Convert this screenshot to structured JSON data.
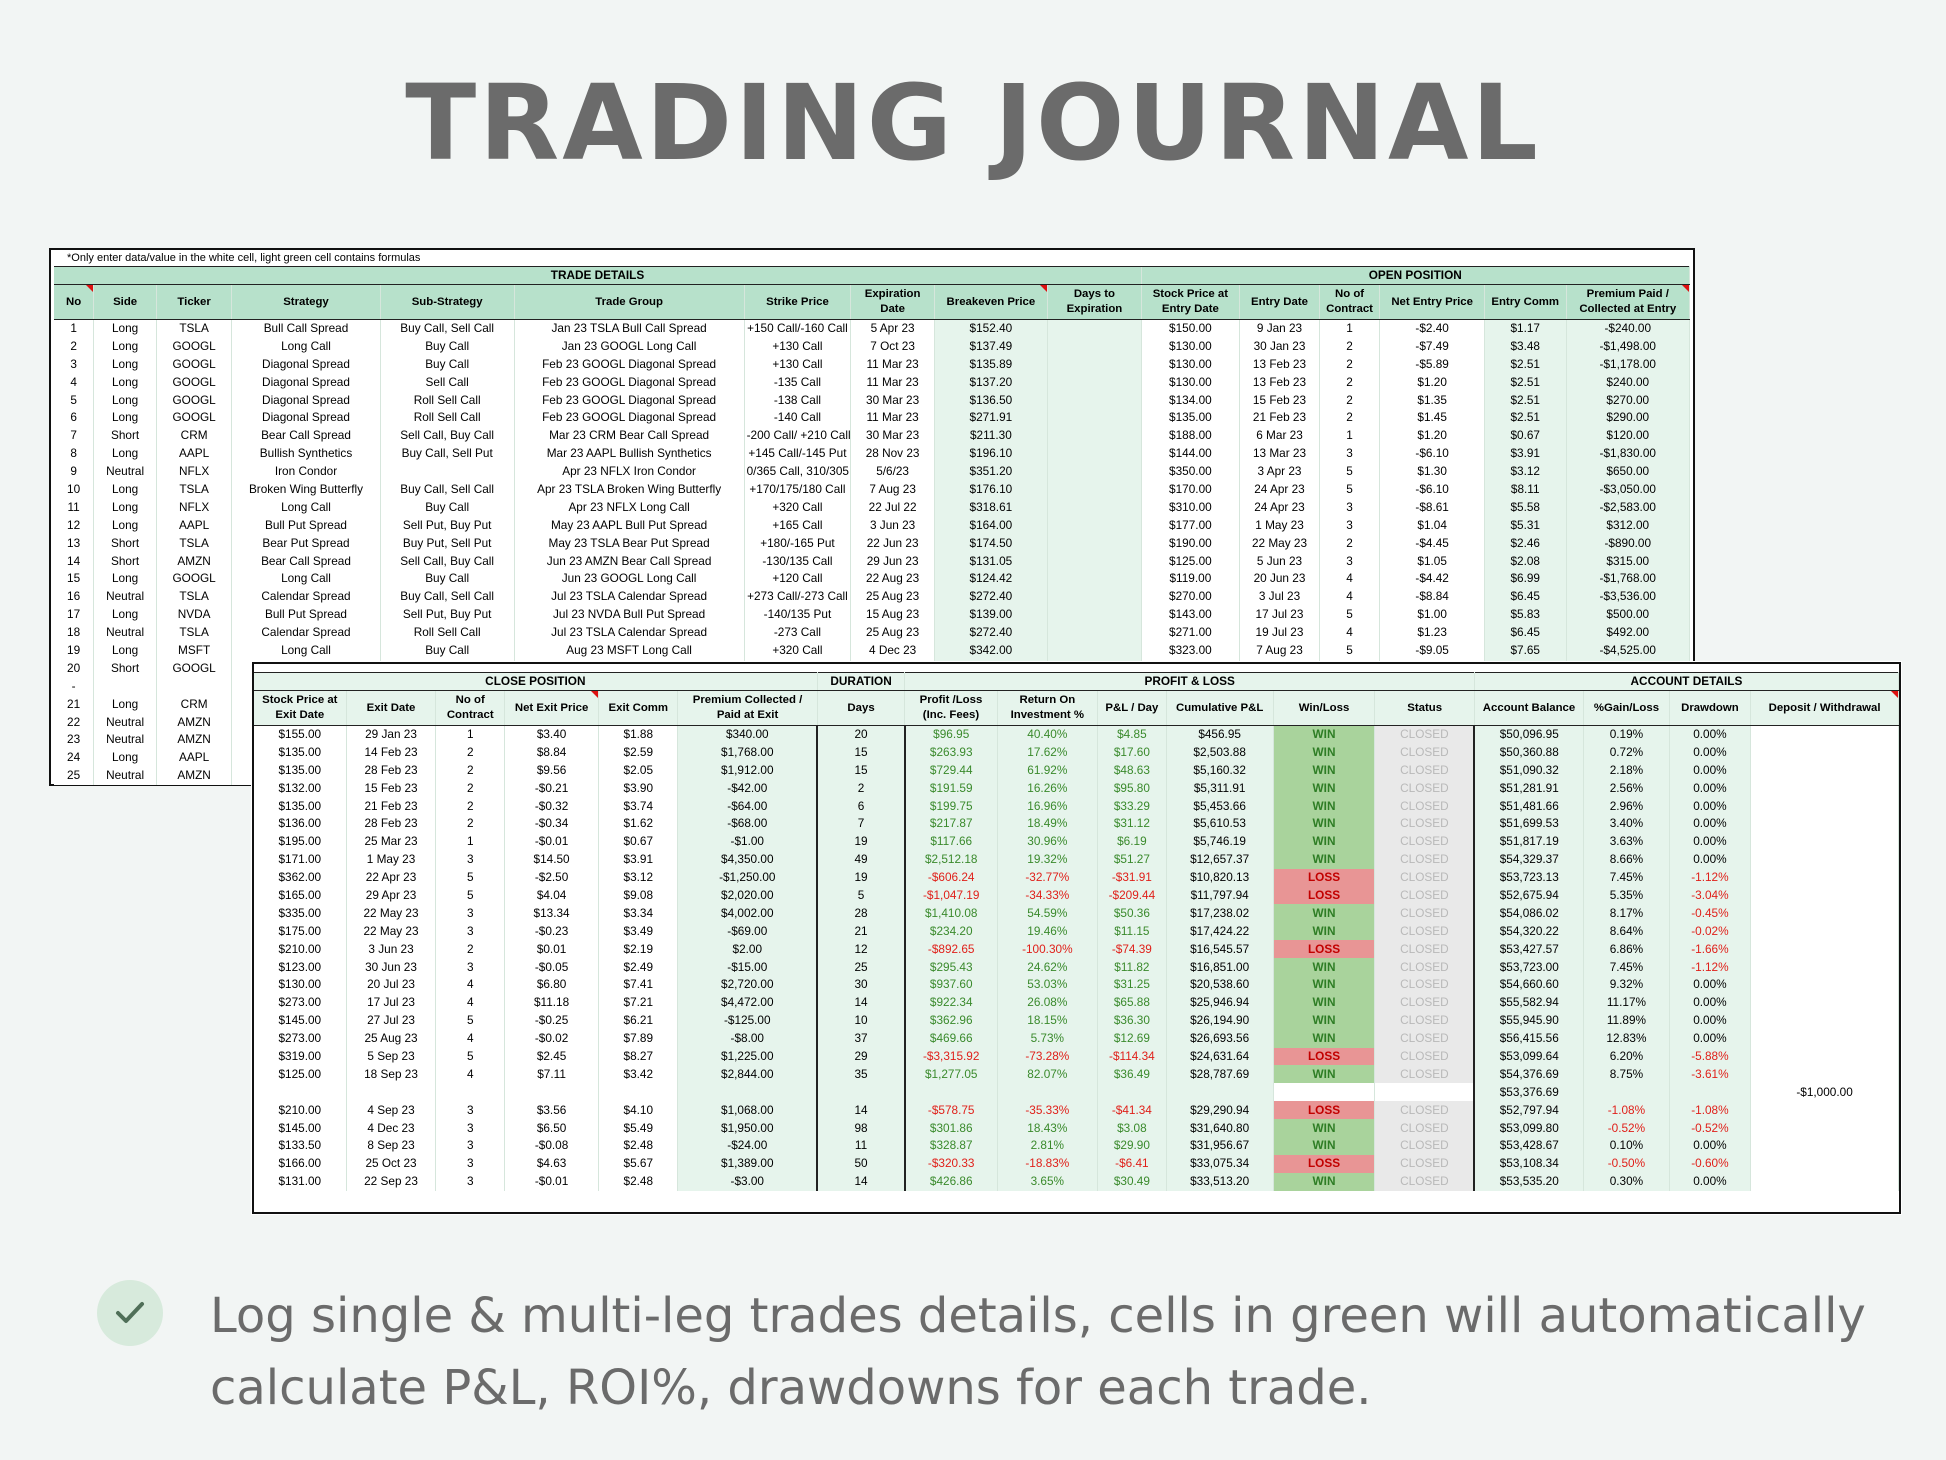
{
  "title": "TRADING JOURNAL",
  "note": "*Only enter data/value in the white cell, light green cell contains formulas",
  "caption": "Log single & multi-leg trades details, cells in green will automatically calculate P&L, ROI%, drawdowns for each trade.",
  "sheet1": {
    "groups": [
      "TRADE DETAILS",
      "OPEN POSITION"
    ],
    "headers": [
      "No",
      "Side",
      "Ticker",
      "Strategy",
      "Sub-Strategy",
      "Trade Group",
      "Strike Price",
      "Expiration Date",
      "Breakeven Price",
      "Days to Expiration",
      "Stock Price at Entry Date",
      "Entry Date",
      "No of Contract",
      "Net Entry Price",
      "Entry Comm",
      "Premium Paid / Collected at Entry"
    ],
    "rows": [
      [
        "1",
        "Long",
        "TSLA",
        "Bull Call Spread",
        "Buy Call, Sell Call",
        "Jan 23 TSLA Bull Call Spread",
        "+150 Call/-160 Call",
        "5 Apr 23",
        "$152.40",
        "",
        "$150.00",
        "9 Jan 23",
        "1",
        "-$2.40",
        "$1.17",
        "-$240.00"
      ],
      [
        "2",
        "Long",
        "GOOGL",
        "Long Call",
        "Buy Call",
        "Jan 23 GOOGL Long Call",
        "+130 Call",
        "7 Oct 23",
        "$137.49",
        "",
        "$130.00",
        "30 Jan 23",
        "2",
        "-$7.49",
        "$3.48",
        "-$1,498.00"
      ],
      [
        "3",
        "Long",
        "GOOGL",
        "Diagonal Spread",
        "Buy Call",
        "Feb 23 GOOGL Diagonal Spread",
        "+130 Call",
        "11 Mar 23",
        "$135.89",
        "",
        "$130.00",
        "13 Feb 23",
        "2",
        "-$5.89",
        "$2.51",
        "-$1,178.00"
      ],
      [
        "4",
        "Long",
        "GOOGL",
        "Diagonal Spread",
        "Sell Call",
        "Feb 23 GOOGL Diagonal Spread",
        "-135 Call",
        "11 Mar 23",
        "$137.20",
        "",
        "$130.00",
        "13 Feb 23",
        "2",
        "$1.20",
        "$2.51",
        "$240.00"
      ],
      [
        "5",
        "Long",
        "GOOGL",
        "Diagonal Spread",
        "Roll Sell Call",
        "Feb 23 GOOGL Diagonal Spread",
        "-138 Call",
        "30 Mar 23",
        "$136.50",
        "",
        "$134.00",
        "15 Feb 23",
        "2",
        "$1.35",
        "$2.51",
        "$270.00"
      ],
      [
        "6",
        "Long",
        "GOOGL",
        "Diagonal Spread",
        "Roll Sell Call",
        "Feb 23 GOOGL Diagonal Spread",
        "-140 Call",
        "11 Mar 23",
        "$271.91",
        "",
        "$135.00",
        "21 Feb 23",
        "2",
        "$1.45",
        "$2.51",
        "$290.00"
      ],
      [
        "7",
        "Short",
        "CRM",
        "Bear Call Spread",
        "Sell Call, Buy Call",
        "Mar 23 CRM Bear Call Spread",
        "-200 Call/ +210 Call",
        "30 Mar 23",
        "$211.30",
        "",
        "$188.00",
        "6 Mar 23",
        "1",
        "$1.20",
        "$0.67",
        "$120.00"
      ],
      [
        "8",
        "Long",
        "AAPL",
        "Bullish Synthetics",
        "Buy Call, Sell Put",
        "Mar 23 AAPL Bullish Synthetics",
        "+145 Call/-145 Put",
        "28 Nov 23",
        "$196.10",
        "",
        "$144.00",
        "13 Mar 23",
        "3",
        "-$6.10",
        "$3.91",
        "-$1,830.00"
      ],
      [
        "9",
        "Neutral",
        "NFLX",
        "Iron Condor",
        "",
        "Apr 23 NFLX Iron Condor",
        "0/365 Call, 310/305 P",
        "5/6/23",
        "$351.20",
        "",
        "$350.00",
        "3 Apr 23",
        "5",
        "$1.30",
        "$3.12",
        "$650.00"
      ],
      [
        "10",
        "Long",
        "TSLA",
        "Broken Wing Butterfly",
        "Buy Call, Sell Call",
        "Apr 23 TSLA Broken Wing Butterfly",
        "+170/175/180 Call",
        "7 Aug 23",
        "$176.10",
        "",
        "$170.00",
        "24 Apr 23",
        "5",
        "-$6.10",
        "$8.11",
        "-$3,050.00"
      ],
      [
        "11",
        "Long",
        "NFLX",
        "Long Call",
        "Buy Call",
        "Apr 23 NFLX Long Call",
        "+320 Call",
        "22 Jul 22",
        "$318.61",
        "",
        "$310.00",
        "24 Apr 23",
        "3",
        "-$8.61",
        "$5.58",
        "-$2,583.00"
      ],
      [
        "12",
        "Long",
        "AAPL",
        "Bull Put Spread",
        "Sell Put, Buy Put",
        "May 23 AAPL Bull Put Spread",
        "+165 Call",
        "3 Jun 23",
        "$164.00",
        "",
        "$177.00",
        "1 May 23",
        "3",
        "$1.04",
        "$5.31",
        "$312.00"
      ],
      [
        "13",
        "Short",
        "TSLA",
        "Bear Put Spread",
        "Buy Put, Sell Put",
        "May 23 TSLA Bear Put Spread",
        "+180/-165 Put",
        "22 Jun 23",
        "$174.50",
        "",
        "$190.00",
        "22 May 23",
        "2",
        "-$4.45",
        "$2.46",
        "-$890.00"
      ],
      [
        "14",
        "Short",
        "AMZN",
        "Bear Call Spread",
        "Sell Call, Buy Call",
        "Jun 23 AMZN Bear Call Spread",
        "-130/135 Call",
        "29 Jun 23",
        "$131.05",
        "",
        "$125.00",
        "5 Jun 23",
        "3",
        "$1.05",
        "$2.08",
        "$315.00"
      ],
      [
        "15",
        "Long",
        "GOOGL",
        "Long Call",
        "Buy Call",
        "Jun 23 GOOGL Long Call",
        "+120 Call",
        "22 Aug 23",
        "$124.42",
        "",
        "$119.00",
        "20 Jun 23",
        "4",
        "-$4.42",
        "$6.99",
        "-$1,768.00"
      ],
      [
        "16",
        "Neutral",
        "TSLA",
        "Calendar Spread",
        "Buy Call, Sell Call",
        "Jul 23 TSLA Calendar Spread",
        "+273 Call/-273 Call",
        "25 Aug 23",
        "$272.40",
        "",
        "$270.00",
        "3 Jul 23",
        "4",
        "-$8.84",
        "$6.45",
        "-$3,536.00"
      ],
      [
        "17",
        "Long",
        "NVDA",
        "Bull Put Spread",
        "Sell Put, Buy Put",
        "Jul 23 NVDA Bull Put Spread",
        "-140/135 Put",
        "15 Aug 23",
        "$139.00",
        "",
        "$143.00",
        "17 Jul 23",
        "5",
        "$1.00",
        "$5.83",
        "$500.00"
      ],
      [
        "18",
        "Neutral",
        "TSLA",
        "Calendar Spread",
        "Roll Sell Call",
        "Jul 23 TSLA Calendar Spread",
        "-273 Call",
        "25 Aug 23",
        "$272.40",
        "",
        "$271.00",
        "19 Jul 23",
        "4",
        "$1.23",
        "$6.45",
        "$492.00"
      ],
      [
        "19",
        "Long",
        "MSFT",
        "Long Call",
        "Buy Call",
        "Aug 23 MSFT Long Call",
        "+320 Call",
        "4 Dec 23",
        "$342.00",
        "",
        "$323.00",
        "7 Aug 23",
        "5",
        "-$9.05",
        "$7.65",
        "-$4,525.00"
      ],
      [
        "20",
        "Short",
        "GOOGL",
        "",
        "",
        "",
        "",
        "",
        "",
        "",
        "",
        "",
        "",
        "",
        "",
        ""
      ],
      [
        "-",
        "",
        "",
        "",
        "",
        "",
        "",
        "",
        "",
        "",
        "",
        "",
        "",
        "",
        "",
        ""
      ],
      [
        "21",
        "Long",
        "CRM",
        "",
        "",
        "",
        "",
        "",
        "",
        "",
        "",
        "",
        "",
        "",
        "",
        ""
      ],
      [
        "22",
        "Neutral",
        "AMZN",
        "",
        "",
        "",
        "",
        "",
        "",
        "",
        "",
        "",
        "",
        "",
        "",
        ""
      ],
      [
        "23",
        "Neutral",
        "AMZN",
        "",
        "",
        "",
        "",
        "",
        "",
        "",
        "",
        "",
        "",
        "",
        "",
        ""
      ],
      [
        "24",
        "Long",
        "AAPL",
        "",
        "",
        "",
        "",
        "",
        "",
        "",
        "",
        "",
        "",
        "",
        "",
        ""
      ],
      [
        "25",
        "Neutral",
        "AMZN",
        "",
        "",
        "",
        "",
        "",
        "",
        "",
        "",
        "",
        "",
        "",
        "",
        ""
      ]
    ]
  },
  "sheet2": {
    "groups": [
      "CLOSE POSITION",
      "DURATION",
      "PROFIT & LOSS",
      "ACCOUNT DETAILS"
    ],
    "headers": [
      "Stock Price at Exit Date",
      "Exit Date",
      "No of Contract",
      "Net Exit Price",
      "Exit Comm",
      "Premium Collected / Paid at Exit",
      "Days",
      "Profit /Loss (Inc. Fees)",
      "Return On Investment %",
      "P&L / Day",
      "Cumulative P&L",
      "Win/Loss",
      "Status",
      "Account Balance",
      "%Gain/Loss",
      "Drawdown",
      "Deposit / Withdrawal"
    ],
    "rows": [
      [
        "$155.00",
        "29 Jan 23",
        "1",
        "$3.40",
        "$1.88",
        "$340.00",
        "20",
        "$96.95",
        "40.40%",
        "$4.85",
        "$456.95",
        "WIN",
        "CLOSED",
        "$50,096.95",
        "0.19%",
        "0.00%",
        ""
      ],
      [
        "$135.00",
        "14 Feb 23",
        "2",
        "$8.84",
        "$2.59",
        "$1,768.00",
        "15",
        "$263.93",
        "17.62%",
        "$17.60",
        "$2,503.88",
        "WIN",
        "CLOSED",
        "$50,360.88",
        "0.72%",
        "0.00%",
        ""
      ],
      [
        "$135.00",
        "28 Feb 23",
        "2",
        "$9.56",
        "$2.05",
        "$1,912.00",
        "15",
        "$729.44",
        "61.92%",
        "$48.63",
        "$5,160.32",
        "WIN",
        "CLOSED",
        "$51,090.32",
        "2.18%",
        "0.00%",
        ""
      ],
      [
        "$132.00",
        "15 Feb 23",
        "2",
        "-$0.21",
        "$3.90",
        "-$42.00",
        "2",
        "$191.59",
        "16.26%",
        "$95.80",
        "$5,311.91",
        "WIN",
        "CLOSED",
        "$51,281.91",
        "2.56%",
        "0.00%",
        ""
      ],
      [
        "$135.00",
        "21 Feb 23",
        "2",
        "-$0.32",
        "$3.74",
        "-$64.00",
        "6",
        "$199.75",
        "16.96%",
        "$33.29",
        "$5,453.66",
        "WIN",
        "CLOSED",
        "$51,481.66",
        "2.96%",
        "0.00%",
        ""
      ],
      [
        "$136.00",
        "28 Feb 23",
        "2",
        "-$0.34",
        "$1.62",
        "-$68.00",
        "7",
        "$217.87",
        "18.49%",
        "$31.12",
        "$5,610.53",
        "WIN",
        "CLOSED",
        "$51,699.53",
        "3.40%",
        "0.00%",
        ""
      ],
      [
        "$195.00",
        "25 Mar 23",
        "1",
        "-$0.01",
        "$0.67",
        "-$1.00",
        "19",
        "$117.66",
        "30.96%",
        "$6.19",
        "$5,746.19",
        "WIN",
        "CLOSED",
        "$51,817.19",
        "3.63%",
        "0.00%",
        ""
      ],
      [
        "$171.00",
        "1 May 23",
        "3",
        "$14.50",
        "$3.91",
        "$4,350.00",
        "49",
        "$2,512.18",
        "19.32%",
        "$51.27",
        "$12,657.37",
        "WIN",
        "CLOSED",
        "$54,329.37",
        "8.66%",
        "0.00%",
        ""
      ],
      [
        "$362.00",
        "22 Apr 23",
        "5",
        "-$2.50",
        "$3.12",
        "-$1,250.00",
        "19",
        "-$606.24",
        "-32.77%",
        "-$31.91",
        "$10,820.13",
        "LOSS",
        "CLOSED",
        "$53,723.13",
        "7.45%",
        "-1.12%",
        ""
      ],
      [
        "$165.00",
        "29 Apr 23",
        "5",
        "$4.04",
        "$9.08",
        "$2,020.00",
        "5",
        "-$1,047.19",
        "-34.33%",
        "-$209.44",
        "$11,797.94",
        "LOSS",
        "CLOSED",
        "$52,675.94",
        "5.35%",
        "-3.04%",
        ""
      ],
      [
        "$335.00",
        "22 May 23",
        "3",
        "$13.34",
        "$3.34",
        "$4,002.00",
        "28",
        "$1,410.08",
        "54.59%",
        "$50.36",
        "$17,238.02",
        "WIN",
        "CLOSED",
        "$54,086.02",
        "8.17%",
        "-0.45%",
        ""
      ],
      [
        "$175.00",
        "22 May 23",
        "3",
        "-$0.23",
        "$3.49",
        "-$69.00",
        "21",
        "$234.20",
        "19.46%",
        "$11.15",
        "$17,424.22",
        "WIN",
        "CLOSED",
        "$54,320.22",
        "8.64%",
        "-0.02%",
        ""
      ],
      [
        "$210.00",
        "3 Jun 23",
        "2",
        "$0.01",
        "$2.19",
        "$2.00",
        "12",
        "-$892.65",
        "-100.30%",
        "-$74.39",
        "$16,545.57",
        "LOSS",
        "CLOSED",
        "$53,427.57",
        "6.86%",
        "-1.66%",
        ""
      ],
      [
        "$123.00",
        "30 Jun 23",
        "3",
        "-$0.05",
        "$2.49",
        "-$15.00",
        "25",
        "$295.43",
        "24.62%",
        "$11.82",
        "$16,851.00",
        "WIN",
        "CLOSED",
        "$53,723.00",
        "7.45%",
        "-1.12%",
        ""
      ],
      [
        "$130.00",
        "20 Jul 23",
        "4",
        "$6.80",
        "$7.41",
        "$2,720.00",
        "30",
        "$937.60",
        "53.03%",
        "$31.25",
        "$20,538.60",
        "WIN",
        "CLOSED",
        "$54,660.60",
        "9.32%",
        "0.00%",
        ""
      ],
      [
        "$273.00",
        "17 Jul 23",
        "4",
        "$11.18",
        "$7.21",
        "$4,472.00",
        "14",
        "$922.34",
        "26.08%",
        "$65.88",
        "$25,946.94",
        "WIN",
        "CLOSED",
        "$55,582.94",
        "11.17%",
        "0.00%",
        ""
      ],
      [
        "$145.00",
        "27 Jul 23",
        "5",
        "-$0.25",
        "$6.21",
        "-$125.00",
        "10",
        "$362.96",
        "18.15%",
        "$36.30",
        "$26,194.90",
        "WIN",
        "CLOSED",
        "$55,945.90",
        "11.89%",
        "0.00%",
        ""
      ],
      [
        "$273.00",
        "25 Aug 23",
        "4",
        "-$0.02",
        "$7.89",
        "-$8.00",
        "37",
        "$469.66",
        "5.73%",
        "$12.69",
        "$26,693.56",
        "WIN",
        "CLOSED",
        "$56,415.56",
        "12.83%",
        "0.00%",
        ""
      ],
      [
        "$319.00",
        "5 Sep 23",
        "5",
        "$2.45",
        "$8.27",
        "$1,225.00",
        "29",
        "-$3,315.92",
        "-73.28%",
        "-$114.34",
        "$24,631.64",
        "LOSS",
        "CLOSED",
        "$53,099.64",
        "6.20%",
        "-5.88%",
        ""
      ],
      [
        "$125.00",
        "18 Sep 23",
        "4",
        "$7.11",
        "$3.42",
        "$2,844.00",
        "35",
        "$1,277.05",
        "82.07%",
        "$36.49",
        "$28,787.69",
        "WIN",
        "CLOSED",
        "$54,376.69",
        "8.75%",
        "-3.61%",
        ""
      ],
      [
        "",
        "",
        "",
        "",
        "",
        "",
        "",
        "",
        "",
        "",
        "",
        "",
        "",
        "$53,376.69",
        "",
        "",
        "-$1,000.00"
      ],
      [
        "$210.00",
        "4 Sep 23",
        "3",
        "$3.56",
        "$4.10",
        "$1,068.00",
        "14",
        "-$578.75",
        "-35.33%",
        "-$41.34",
        "$29,290.94",
        "LOSS",
        "CLOSED",
        "$52,797.94",
        "-1.08%",
        "-1.08%",
        ""
      ],
      [
        "$145.00",
        "4 Dec 23",
        "3",
        "$6.50",
        "$5.49",
        "$1,950.00",
        "98",
        "$301.86",
        "18.43%",
        "$3.08",
        "$31,640.80",
        "WIN",
        "CLOSED",
        "$53,099.80",
        "-0.52%",
        "-0.52%",
        ""
      ],
      [
        "$133.50",
        "8 Sep 23",
        "3",
        "-$0.08",
        "$2.48",
        "-$24.00",
        "11",
        "$328.87",
        "2.81%",
        "$29.90",
        "$31,956.67",
        "WIN",
        "CLOSED",
        "$53,428.67",
        "0.10%",
        "0.00%",
        ""
      ],
      [
        "$166.00",
        "25 Oct 23",
        "3",
        "$4.63",
        "$5.67",
        "$1,389.00",
        "50",
        "-$320.33",
        "-18.83%",
        "-$6.41",
        "$33,075.34",
        "LOSS",
        "CLOSED",
        "$53,108.34",
        "-0.50%",
        "-0.60%",
        ""
      ],
      [
        "$131.00",
        "22 Sep 23",
        "3",
        "-$0.01",
        "$2.48",
        "-$3.00",
        "14",
        "$426.86",
        "3.65%",
        "$30.49",
        "$33,513.20",
        "WIN",
        "CLOSED",
        "$53,535.20",
        "0.30%",
        "0.00%",
        ""
      ]
    ]
  },
  "colors": {
    "header_green": "#b7e1cb",
    "formula_green": "#e6f4ec",
    "win": "#a9d39c",
    "loss": "#e89595",
    "negative": "#e0201a",
    "positive": "#3a8a2c"
  },
  "icons": {
    "bullet": "check-icon"
  }
}
